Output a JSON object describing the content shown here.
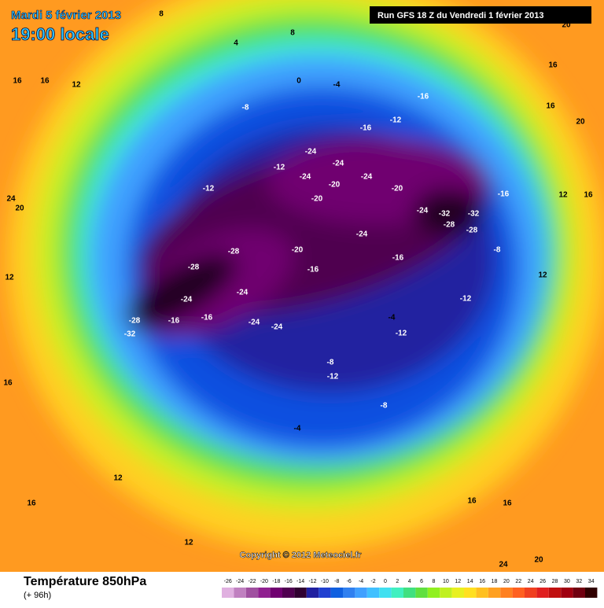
{
  "header": {
    "date": "Mardi 5 février 2013",
    "time": "19:00 locale",
    "run": "Run GFS 18 Z du Vendredi 1 février 2013"
  },
  "copyright": "Copyright © 2012 Meteociel.fr",
  "legend": {
    "title": "Température 850hPa",
    "subtitle": "(+ 96h)",
    "ticks": [
      -26,
      -24,
      -22,
      -20,
      -18,
      -16,
      -14,
      -12,
      -10,
      -8,
      -6,
      -4,
      -2,
      0,
      2,
      4,
      6,
      8,
      10,
      12,
      14,
      16,
      18,
      20,
      22,
      24,
      26,
      28,
      30,
      32,
      34
    ],
    "colors": [
      "#e0b0e0",
      "#c080c0",
      "#a050a0",
      "#902090",
      "#700070",
      "#500050",
      "#300030",
      "#2020a0",
      "#2040d0",
      "#1060e0",
      "#3080f0",
      "#40a0ff",
      "#40c0ff",
      "#40e0f0",
      "#40f0c0",
      "#40e080",
      "#60e040",
      "#90f020",
      "#c0f020",
      "#e8f020",
      "#ffe020",
      "#ffc020",
      "#ffa020",
      "#ff8020",
      "#ff6020",
      "#f04020",
      "#e02020",
      "#c01010",
      "#a00010",
      "#700010",
      "#300000"
    ]
  },
  "map_labels": [
    "8",
    "4",
    "8",
    "16",
    "16",
    "12",
    "0",
    "-4",
    "-8",
    "-16",
    "-12",
    "-16",
    "-24",
    "-24",
    "-24",
    "-24",
    "-20",
    "-20",
    "-20",
    "-12",
    "-12",
    "-24",
    "-24",
    "-32",
    "-32",
    "-28",
    "-28",
    "-16",
    "-28",
    "-28",
    "-20",
    "-16",
    "-16",
    "-24",
    "-24",
    "-28",
    "-32",
    "-16",
    "-16",
    "-24",
    "-24",
    "-8",
    "-12",
    "-4",
    "-12",
    "-8",
    "-4",
    "-12",
    "-8",
    "12",
    "12",
    "16",
    "16",
    "20",
    "16",
    "24",
    "20",
    "12",
    "12",
    "16",
    "12",
    "24",
    "20",
    "20",
    "16",
    "16",
    "16"
  ]
}
